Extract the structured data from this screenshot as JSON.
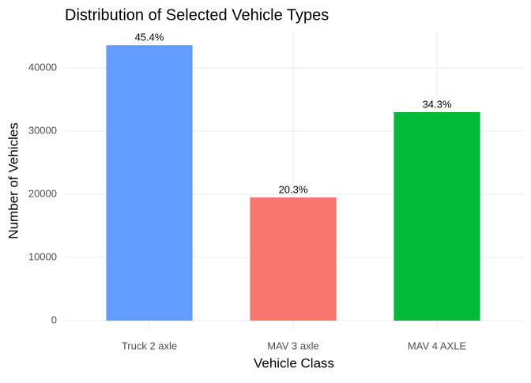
{
  "chart_data": {
    "type": "bar",
    "title": "Distribution of Selected Vehicle Types",
    "x_label": "Vehicle Class",
    "y_label": "Number of Vehicles",
    "categories": [
      "Truck 2 axle",
      "MAV 3 axle",
      "MAV 4 AXLE"
    ],
    "values": [
      43600,
      19500,
      33000
    ],
    "percent_labels": [
      "45.4%",
      "20.3%",
      "34.3%"
    ],
    "colors": [
      "#619CFF",
      "#F8766D",
      "#00BA38"
    ],
    "ylim": [
      -1500,
      45750
    ],
    "yticks": [
      0,
      10000,
      20000,
      30000,
      40000
    ],
    "grid": true
  }
}
